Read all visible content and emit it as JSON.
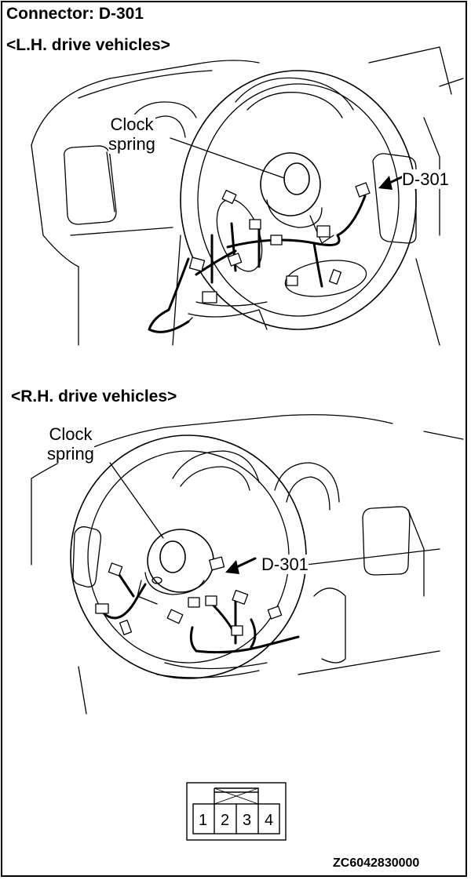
{
  "title": "Connector: D-301",
  "sections": [
    {
      "heading": "<L.H. drive vehicles>",
      "callout_label": "Clock\nspring",
      "connector_label": "D-301"
    },
    {
      "heading": "<R.H. drive vehicles>",
      "callout_label": "Clock\nspring",
      "connector_label": "D-301"
    }
  ],
  "connector_pins": [
    "1",
    "2",
    "3",
    "4"
  ],
  "figure_code": "ZC6042830000"
}
